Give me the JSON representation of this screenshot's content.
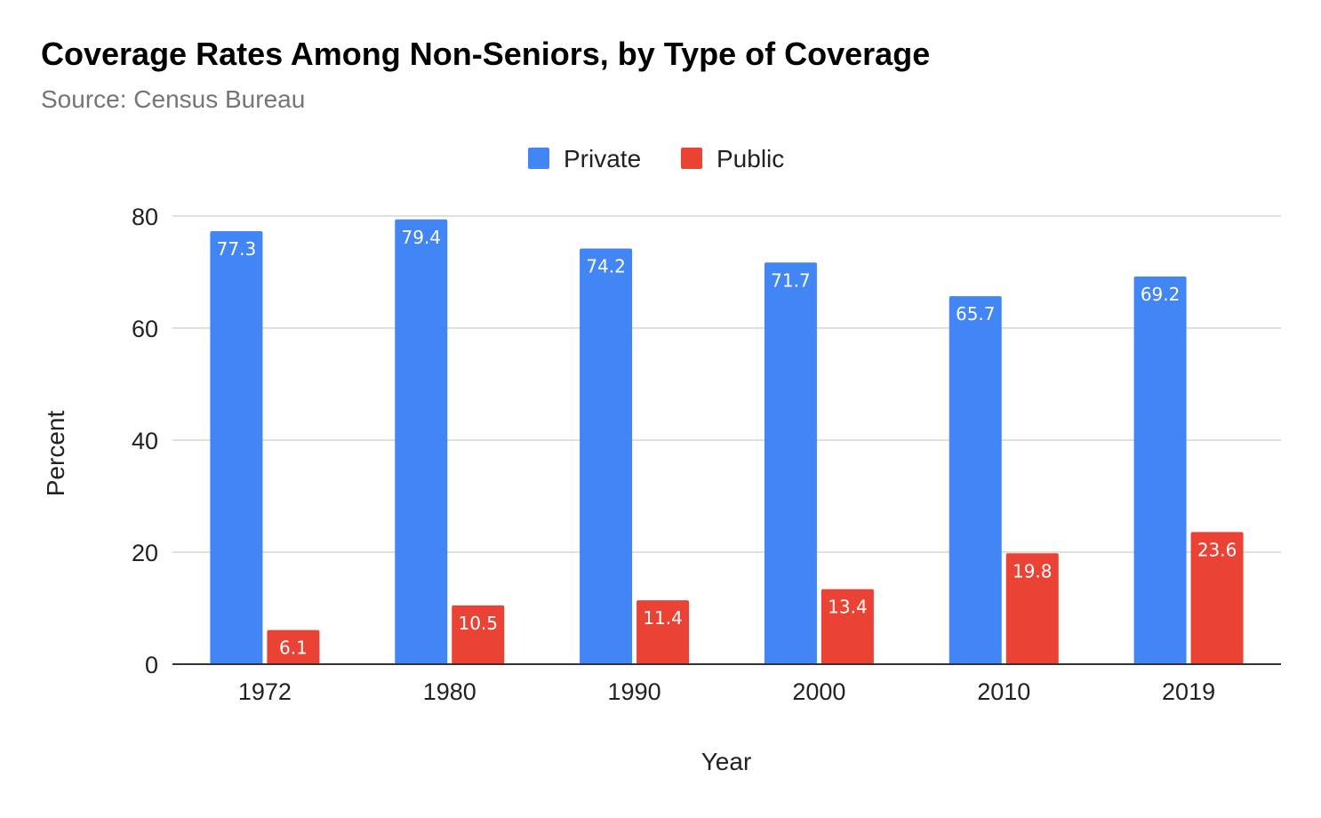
{
  "chart_data": {
    "type": "bar",
    "title": "Coverage Rates Among Non-Seniors, by Type of Coverage",
    "subtitle": "Source: Census Bureau",
    "xlabel": "Year",
    "ylabel": "Percent",
    "categories": [
      "1972",
      "1980",
      "1990",
      "2000",
      "2010",
      "2019"
    ],
    "series": [
      {
        "name": "Private",
        "color": "#4285f4",
        "values": [
          77.3,
          79.4,
          74.2,
          71.7,
          65.7,
          69.2
        ]
      },
      {
        "name": "Public",
        "color": "#ea4335",
        "values": [
          6.1,
          10.5,
          11.4,
          13.4,
          19.8,
          23.6
        ]
      }
    ],
    "ylim": [
      0,
      80
    ],
    "yticks": [
      0,
      20,
      40,
      60,
      80
    ],
    "grid": true,
    "legend_position": "top",
    "data_labels": true
  }
}
